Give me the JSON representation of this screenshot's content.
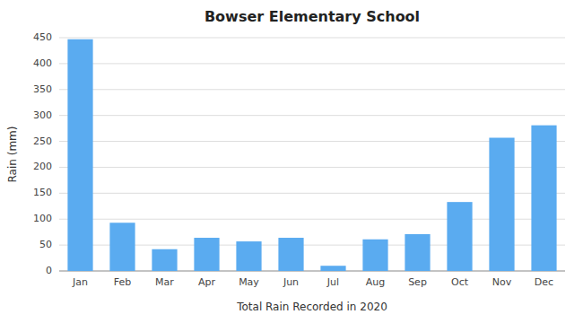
{
  "chart_data": {
    "type": "bar",
    "title": "Bowser Elementary School",
    "xlabel": "Total Rain Recorded in 2020",
    "ylabel": "Rain (mm)",
    "categories": [
      "Jan",
      "Feb",
      "Mar",
      "Apr",
      "May",
      "Jun",
      "Jul",
      "Aug",
      "Sep",
      "Oct",
      "Nov",
      "Dec"
    ],
    "values": [
      447,
      93,
      42,
      64,
      57,
      64,
      10,
      61,
      71,
      133,
      257,
      281
    ],
    "color": "#5aabf0",
    "ylim": [
      0,
      450
    ],
    "yticks": [
      0,
      50,
      100,
      150,
      200,
      250,
      300,
      350,
      400,
      450
    ],
    "grid": true
  }
}
